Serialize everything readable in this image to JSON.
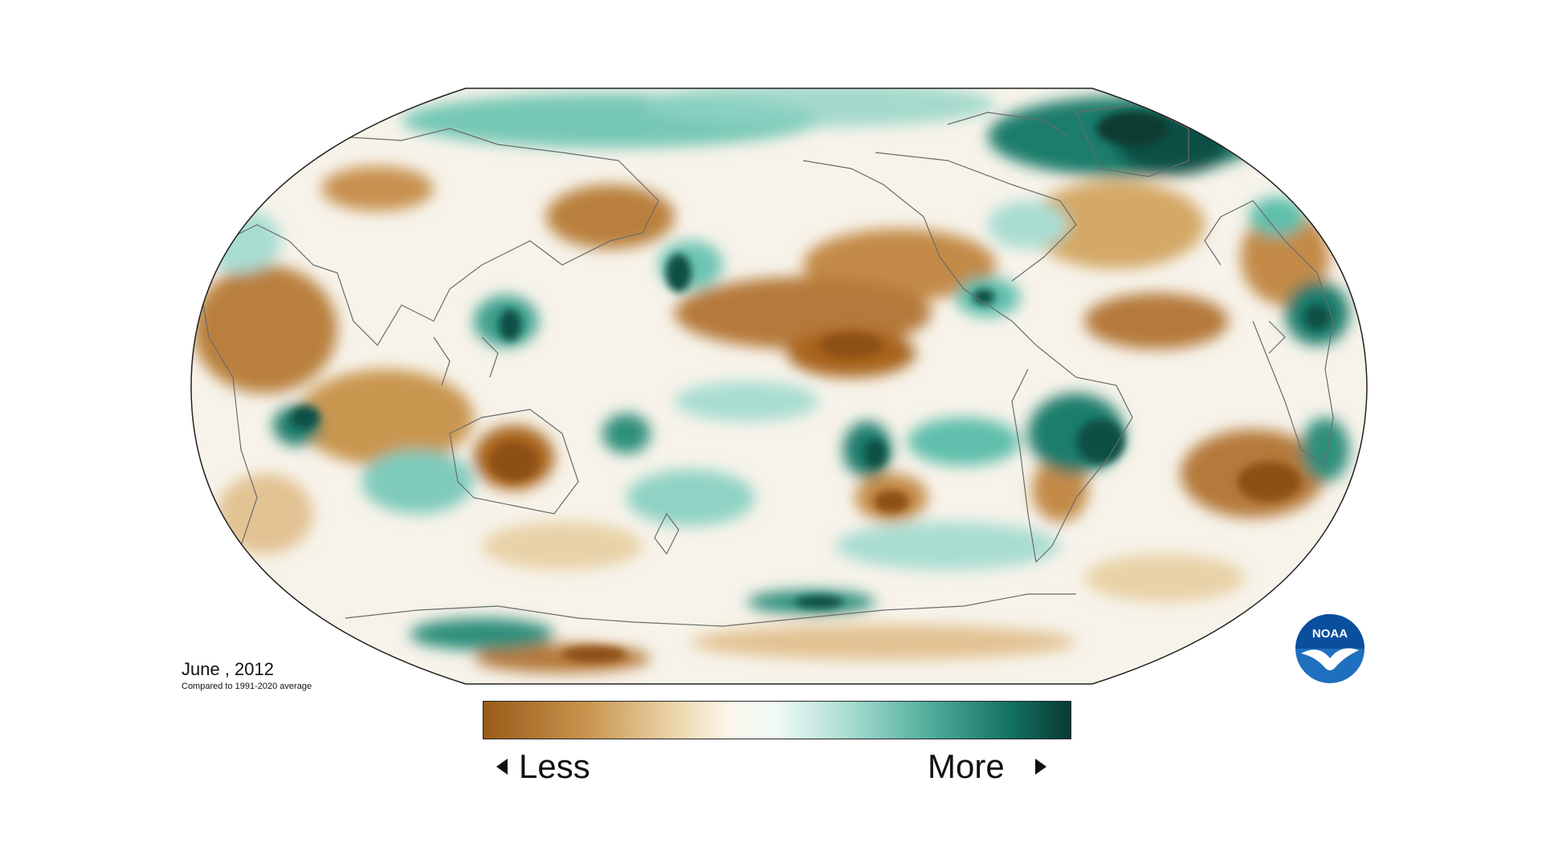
{
  "map": {
    "period": "June , 2012",
    "baseline_note": "Compared to 1991-2020 average",
    "projection": "robinson-pacific-centered",
    "palette": {
      "less_dark": "#a8641e",
      "less_mid": "#d9b27a",
      "less_light": "#f2e3c4",
      "neutral": "#ffffff",
      "more_light": "#c4e8e1",
      "more_mid": "#5fbfac",
      "more_dark": "#0b4f44"
    }
  },
  "legend": {
    "less_label": "Less",
    "more_label": "More",
    "left_arrow_icon": "triangle-left-icon",
    "right_arrow_icon": "triangle-right-icon"
  },
  "branding": {
    "logo_text": "NOAA",
    "logo_colors": {
      "sky": "#1f6fbf",
      "sea": "#0a4f9e",
      "bird": "#ffffff"
    }
  }
}
